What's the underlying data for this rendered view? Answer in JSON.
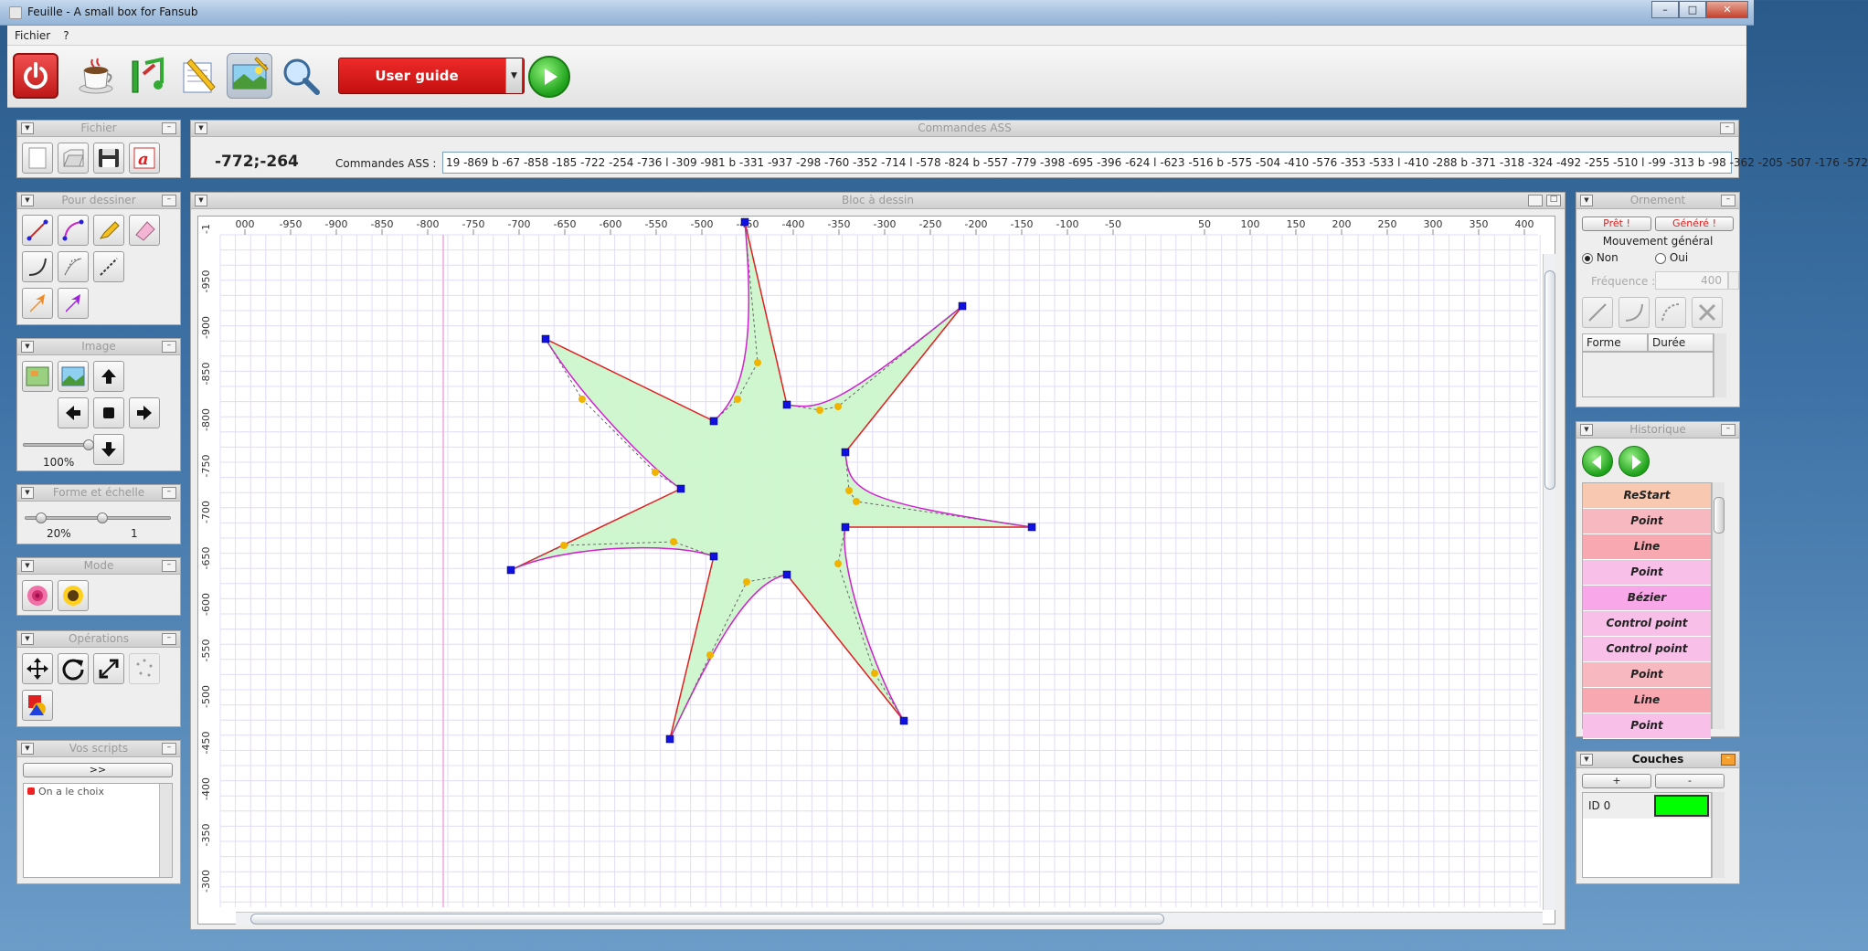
{
  "window": {
    "title": "Feuille - A small box for Fansub"
  },
  "menu": {
    "items": [
      "Fichier",
      "?"
    ]
  },
  "toolbar": {
    "user_guide_label": "User guide"
  },
  "ass_panel": {
    "title": "Commandes ASS",
    "coords": "-772;-264",
    "label": "Commandes ASS :",
    "value": "19 -869 b -67 -858 -185 -722 -254 -736 l -309 -981 b -331 -937 -298 -760 -352 -714 l -578 -824 b -557 -779 -398 -695 -396 -624 l -623 -516 b -575 -504 -410 -576 -353 -533 l -410 -288 b -371 -318 -324 -492 -255 -510 l -99 -313 b -98 -362 -205 -507 -176 -572"
  },
  "left_panels": {
    "fichier": {
      "title": "Fichier"
    },
    "pour_dessiner": {
      "title": "Pour dessiner"
    },
    "image": {
      "title": "Image",
      "zoom": "100%"
    },
    "forme_echelle": {
      "title": "Forme et échelle",
      "value1": "20%",
      "value2": "1"
    },
    "mode": {
      "title": "Mode"
    },
    "operations": {
      "title": "Opérations"
    },
    "vos_scripts": {
      "title": "Vos scripts",
      "button": ">>",
      "items": [
        "On a le choix"
      ]
    }
  },
  "canvas": {
    "title": "Bloc à dessin",
    "x_ticks": [
      "000",
      "-950",
      "-900",
      "-850",
      "-800",
      "-750",
      "-700",
      "-650",
      "-600",
      "-550",
      "-500",
      "-450",
      "-400",
      "-350",
      "-300",
      "-250",
      "-200",
      "-150",
      "-100",
      "-50",
      "50",
      "100",
      "150",
      "200",
      "250",
      "300",
      "350",
      "400"
    ],
    "y_ticks": [
      "-1",
      "-950",
      "-900",
      "-850",
      "-800",
      "-750",
      "-700",
      "-650",
      "-600",
      "-550",
      "-500",
      "-450",
      "-400",
      "-350",
      "-300"
    ],
    "fill_color": "#ccf5cc",
    "line_color": "#e02020",
    "bezier_color": "#d020d0",
    "control_color": "#f0b400",
    "anchor_color": "#1010e0"
  },
  "ornement": {
    "title": "Ornement",
    "pret_btn": "Prêt !",
    "genere_btn": "Généré !",
    "mouvement_label": "Mouvement général",
    "non_label": "Non",
    "oui_label": "Oui",
    "frequence_label": "Fréquence :",
    "frequence_value": "400",
    "col_forme": "Forme",
    "col_duree": "Durée"
  },
  "historique": {
    "title": "Historique",
    "items": [
      {
        "label": "ReStart",
        "color": "#f8c8b0"
      },
      {
        "label": "Point",
        "color": "#f8b8c0"
      },
      {
        "label": "Line",
        "color": "#f8a8b0"
      },
      {
        "label": "Point",
        "color": "#f8c0e8"
      },
      {
        "label": "Bézier",
        "color": "#f8a8e8"
      },
      {
        "label": "Control point",
        "color": "#f8c0e8"
      },
      {
        "label": "Control point",
        "color": "#f8c0e8"
      },
      {
        "label": "Point",
        "color": "#f8b8c0"
      },
      {
        "label": "Line",
        "color": "#f8a8b0"
      },
      {
        "label": "Point",
        "color": "#f8c0e8"
      }
    ]
  },
  "couches": {
    "title": "Couches",
    "add_btn": "+",
    "remove_btn": "-",
    "layers": [
      {
        "id": "ID 0",
        "color": "#00ff00"
      }
    ]
  }
}
